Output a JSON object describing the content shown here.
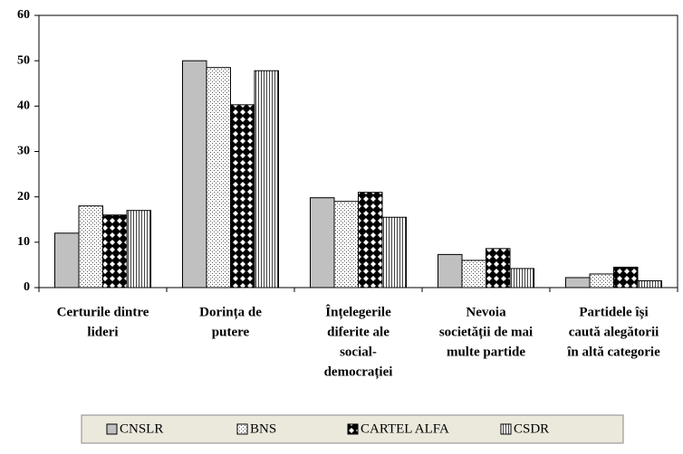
{
  "chart_data": {
    "type": "bar",
    "categories": [
      [
        "Certurile dintre",
        "lideri"
      ],
      [
        "Dorința de",
        "putere"
      ],
      [
        "Înțelegerile",
        "diferite ale",
        "social-",
        "democrației"
      ],
      [
        "Nevoia",
        "societății de mai",
        "multe partide"
      ],
      [
        "Partidele își",
        "caută alegătorii",
        "în altă categorie"
      ]
    ],
    "series": [
      {
        "name": "CNSLR",
        "color": "#c0c0c0",
        "pattern": "solid",
        "values": [
          12,
          50,
          19.8,
          7.3,
          2.2
        ]
      },
      {
        "name": "BNS",
        "color": "#ffffff",
        "pattern": "dots",
        "values": [
          18,
          48.5,
          19,
          6,
          3
        ]
      },
      {
        "name": "CARTEL ALFA",
        "color": "#000000",
        "pattern": "checker",
        "values": [
          16,
          40.3,
          21,
          8.6,
          4.5
        ]
      },
      {
        "name": "CSDR",
        "color": "#ffffff",
        "pattern": "vertical",
        "values": [
          17,
          47.8,
          15.5,
          4.2,
          1.5
        ]
      }
    ],
    "ylim": [
      0,
      60
    ],
    "yticks": [
      0,
      10,
      20,
      30,
      40,
      50,
      60
    ],
    "grid": false,
    "legend": "bottom"
  }
}
